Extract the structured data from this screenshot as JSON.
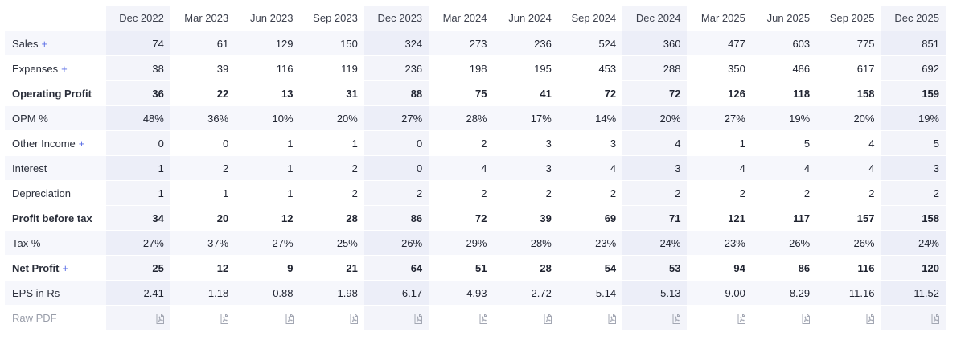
{
  "columns": [
    "Dec 2022",
    "Mar 2023",
    "Jun 2023",
    "Sep 2023",
    "Dec 2023",
    "Mar 2024",
    "Jun 2024",
    "Sep 2024",
    "Dec 2024",
    "Mar 2025",
    "Jun 2025",
    "Sep 2025",
    "Dec 2025"
  ],
  "rows": [
    {
      "label": "Sales",
      "plus": "+",
      "values": [
        "74",
        "61",
        "129",
        "150",
        "324",
        "273",
        "236",
        "524",
        "360",
        "477",
        "603",
        "775",
        "851"
      ]
    },
    {
      "label": "Expenses",
      "plus": "+",
      "values": [
        "38",
        "39",
        "116",
        "119",
        "236",
        "198",
        "195",
        "453",
        "288",
        "350",
        "486",
        "617",
        "692"
      ]
    },
    {
      "label": "Operating Profit",
      "values": [
        "36",
        "22",
        "13",
        "31",
        "88",
        "75",
        "41",
        "72",
        "72",
        "126",
        "118",
        "158",
        "159"
      ]
    },
    {
      "label": "OPM %",
      "values": [
        "48%",
        "36%",
        "10%",
        "20%",
        "27%",
        "28%",
        "17%",
        "14%",
        "20%",
        "27%",
        "19%",
        "20%",
        "19%"
      ]
    },
    {
      "label": "Other Income",
      "plus": "+",
      "values": [
        "0",
        "0",
        "1",
        "1",
        "0",
        "2",
        "3",
        "3",
        "4",
        "1",
        "5",
        "4",
        "5"
      ]
    },
    {
      "label": "Interest",
      "values": [
        "1",
        "2",
        "1",
        "2",
        "0",
        "4",
        "3",
        "4",
        "3",
        "4",
        "4",
        "4",
        "3"
      ]
    },
    {
      "label": "Depreciation",
      "values": [
        "1",
        "1",
        "1",
        "2",
        "2",
        "2",
        "2",
        "2",
        "2",
        "2",
        "2",
        "2",
        "2"
      ]
    },
    {
      "label": "Profit before tax",
      "values": [
        "34",
        "20",
        "12",
        "28",
        "86",
        "72",
        "39",
        "69",
        "71",
        "121",
        "117",
        "157",
        "158"
      ]
    },
    {
      "label": "Tax %",
      "values": [
        "27%",
        "37%",
        "27%",
        "25%",
        "26%",
        "29%",
        "28%",
        "23%",
        "24%",
        "23%",
        "26%",
        "26%",
        "24%"
      ]
    },
    {
      "label": "Net Profit",
      "plus": "+",
      "values": [
        "25",
        "12",
        "9",
        "21",
        "64",
        "51",
        "28",
        "54",
        "53",
        "94",
        "86",
        "116",
        "120"
      ]
    },
    {
      "label": "EPS in Rs",
      "values": [
        "2.41",
        "1.18",
        "0.88",
        "1.98",
        "6.17",
        "4.93",
        "2.72",
        "5.14",
        "5.13",
        "9.00",
        "8.29",
        "11.16",
        "11.52"
      ]
    }
  ],
  "raw_pdf": {
    "label": "Raw PDF",
    "icon": "pdf-file-icon"
  },
  "colors": {
    "accent": "#5a6ee6",
    "highlight_col": "#f3f4fa",
    "alt_row": "#f6f7fc",
    "border": "#dfe3ef"
  }
}
